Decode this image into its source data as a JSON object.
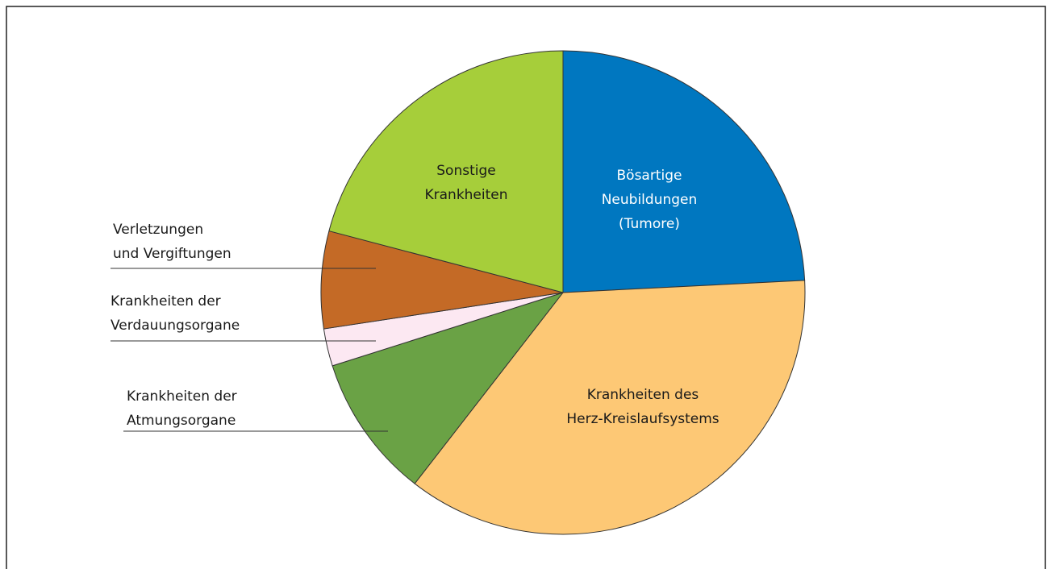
{
  "chart_data": {
    "type": "pie",
    "categories": [
      [
        "Bösartige",
        "Neubildungen",
        "(Tumore)"
      ],
      [
        "Krankheiten des",
        "Herz-Kreislaufsystems"
      ],
      [
        "Krankheiten der",
        "Atmungsorgane"
      ],
      [
        "Krankheiten der",
        "Verdauungsorgane"
      ],
      [
        "Verletzungen",
        "und Vergiftungen"
      ],
      [
        "Sonstige",
        "Krankheiten"
      ]
    ],
    "values": [
      24.2,
      36.3,
      9.6,
      2.5,
      6.5,
      20.9
    ],
    "colors": [
      "#0077c0",
      "#fdc875",
      "#6aa245",
      "#fce8f2",
      "#c46a26",
      "#a6ce3a"
    ]
  }
}
